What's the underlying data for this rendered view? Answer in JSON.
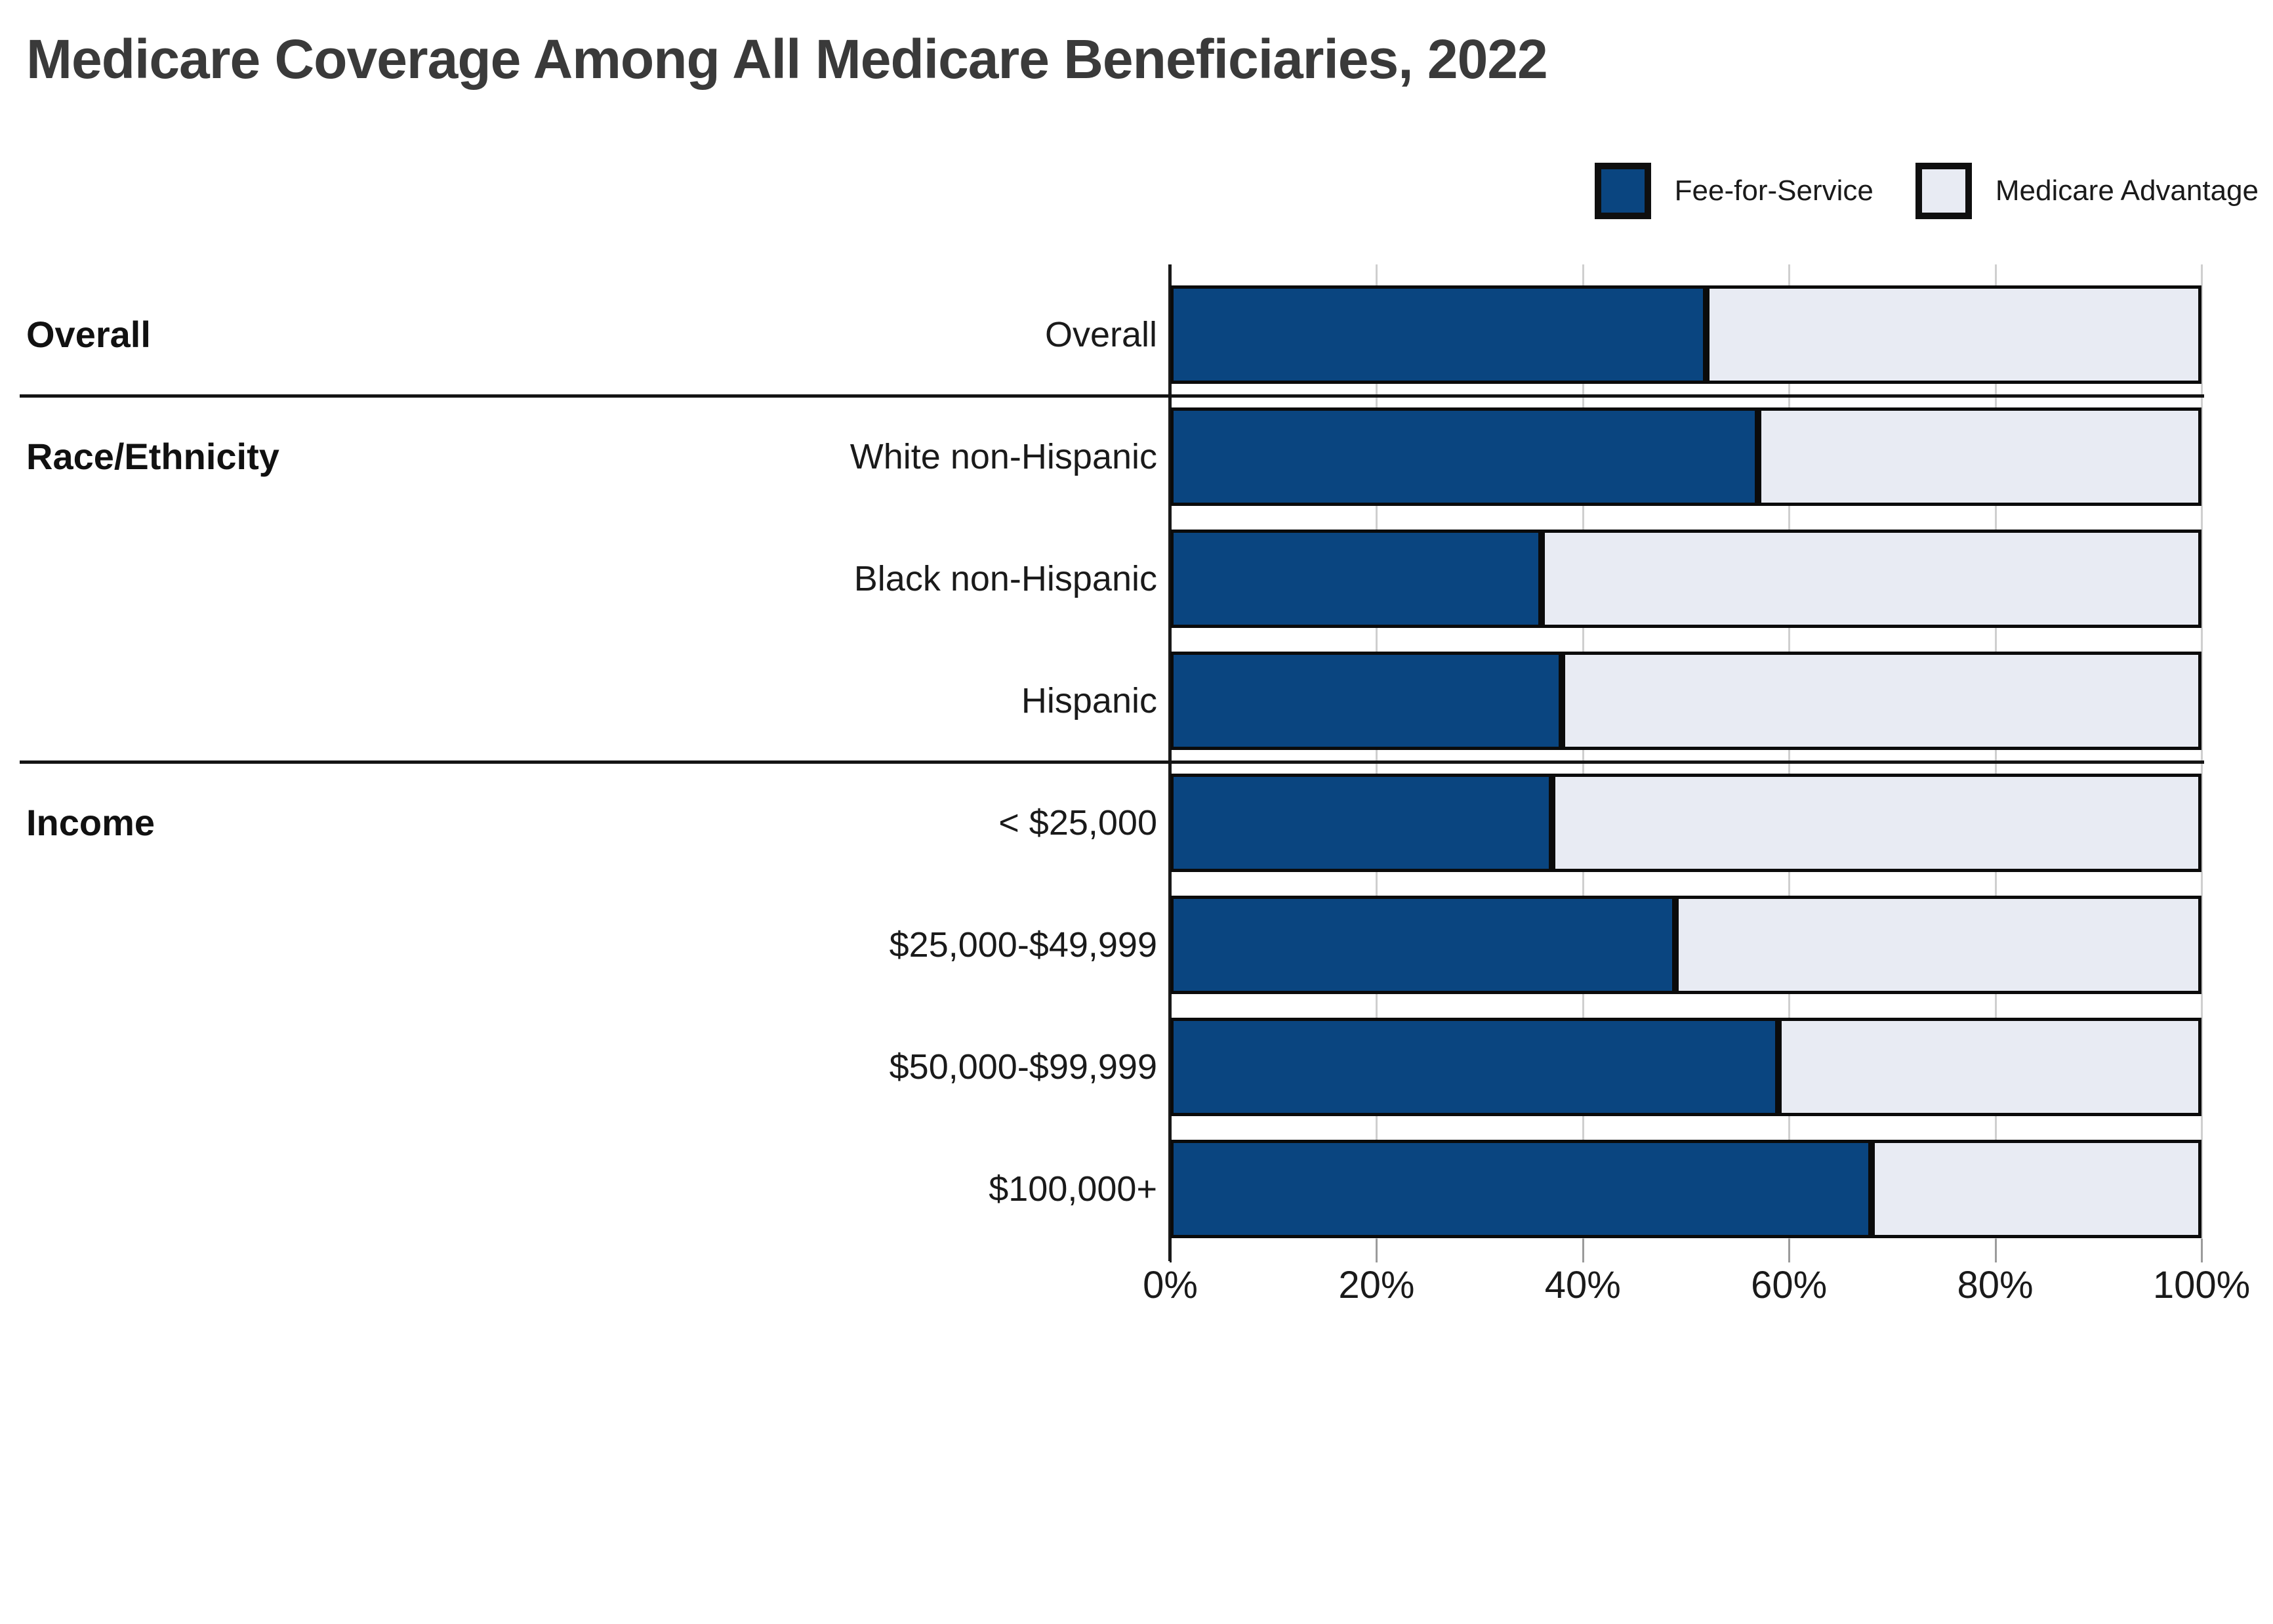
{
  "title": "Medicare Coverage Among All Medicare Beneficiaries, 2022",
  "legend": {
    "items": [
      {
        "label": "Fee-for-Service"
      },
      {
        "label": "Medicare Advantage"
      }
    ]
  },
  "chart_data": {
    "type": "bar",
    "orientation": "horizontal",
    "stacked": true,
    "unit": "percent",
    "title": "Medicare Coverage Among All Medicare Beneficiaries, 2022",
    "categories": [
      "Overall",
      "White non-Hispanic",
      "Black non-Hispanic",
      "Hispanic",
      "< $25,000",
      "$25,000-$49,999",
      "$50,000-$99,999",
      "$100,000+"
    ],
    "groups": [
      {
        "label": "Overall",
        "first_row": 0,
        "row_count": 1
      },
      {
        "label": "Race/Ethnicity",
        "first_row": 1,
        "row_count": 3
      },
      {
        "label": "Income",
        "first_row": 4,
        "row_count": 4
      }
    ],
    "series": [
      {
        "name": "Fee-for-Service",
        "color": "#0a4580",
        "values": [
          52,
          57,
          36,
          38,
          37,
          49,
          59,
          68
        ]
      },
      {
        "name": "Medicare Advantage",
        "color": "#e8ebf3",
        "values": [
          48,
          43,
          64,
          62,
          63,
          51,
          41,
          32
        ]
      }
    ],
    "x_ticks": [
      {
        "label": "0%",
        "value": 0
      },
      {
        "label": "20%",
        "value": 20
      },
      {
        "label": "40%",
        "value": 40
      },
      {
        "label": "60%",
        "value": 60
      },
      {
        "label": "80%",
        "value": 80
      },
      {
        "label": "100%",
        "value": 100
      }
    ],
    "xlim": [
      0,
      100
    ],
    "legend_position": "top-right",
    "grid": true
  },
  "colors": {
    "title_text": "#3a3a3a",
    "label_text": "#1a1a1a",
    "bar_border": "#0b0b0b",
    "gridline": "#cfcfcf",
    "tick": "#9b9b9b",
    "axis_line": "#1a1a1a",
    "divider": "#141414",
    "background": "#ffffff"
  }
}
